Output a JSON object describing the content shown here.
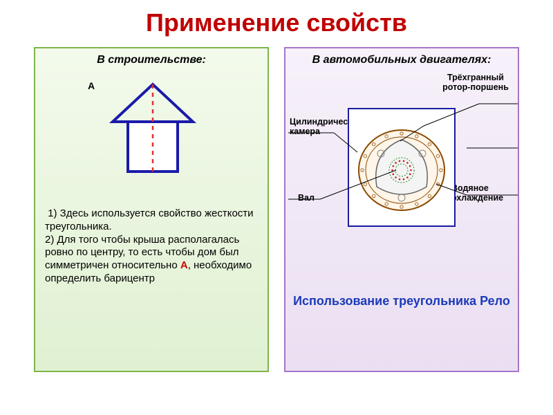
{
  "title": {
    "text": "Применение свойств",
    "color": "#c00000"
  },
  "left": {
    "header": "В строительстве:",
    "labelA": "A",
    "desc_html": "&nbsp;1) Здесь используется свойство жесткости треугольника.<br>2) Для того чтобы крыша располагалась ровно по центру, то есть чтобы дом был симметричен относительно <span class='red-A'>А</span>, необходимо определить барицентр",
    "house": {
      "roof_stroke": "#1a1aaa",
      "roof_stroke_width": 4,
      "wall_fill": "#ffffff",
      "wall_stroke": "#1a1aaa",
      "axis_color": "#e03030",
      "axis_dash": "6,6",
      "axis_width": 2.5
    }
  },
  "right": {
    "header": "В автомобильных двигателях:",
    "caption": "Использование треугольника Рело",
    "caption_color": "#1a3ab8",
    "callouts": {
      "rotor": "Трёхгранный ротор-поршень",
      "chamber": "Цилиндрическая камера",
      "shaft": "Вал",
      "cooling": "Водяное охлаждение"
    },
    "engine": {
      "outer_stroke": "#8a4a00",
      "outer_fill": "#fff5e8",
      "rotor_stroke": "#666666",
      "rotor_fill": "#f4f4f4",
      "gear_stroke": "#1a8f2a",
      "gear_dots": "#d01818",
      "leader_color": "#000000"
    }
  }
}
